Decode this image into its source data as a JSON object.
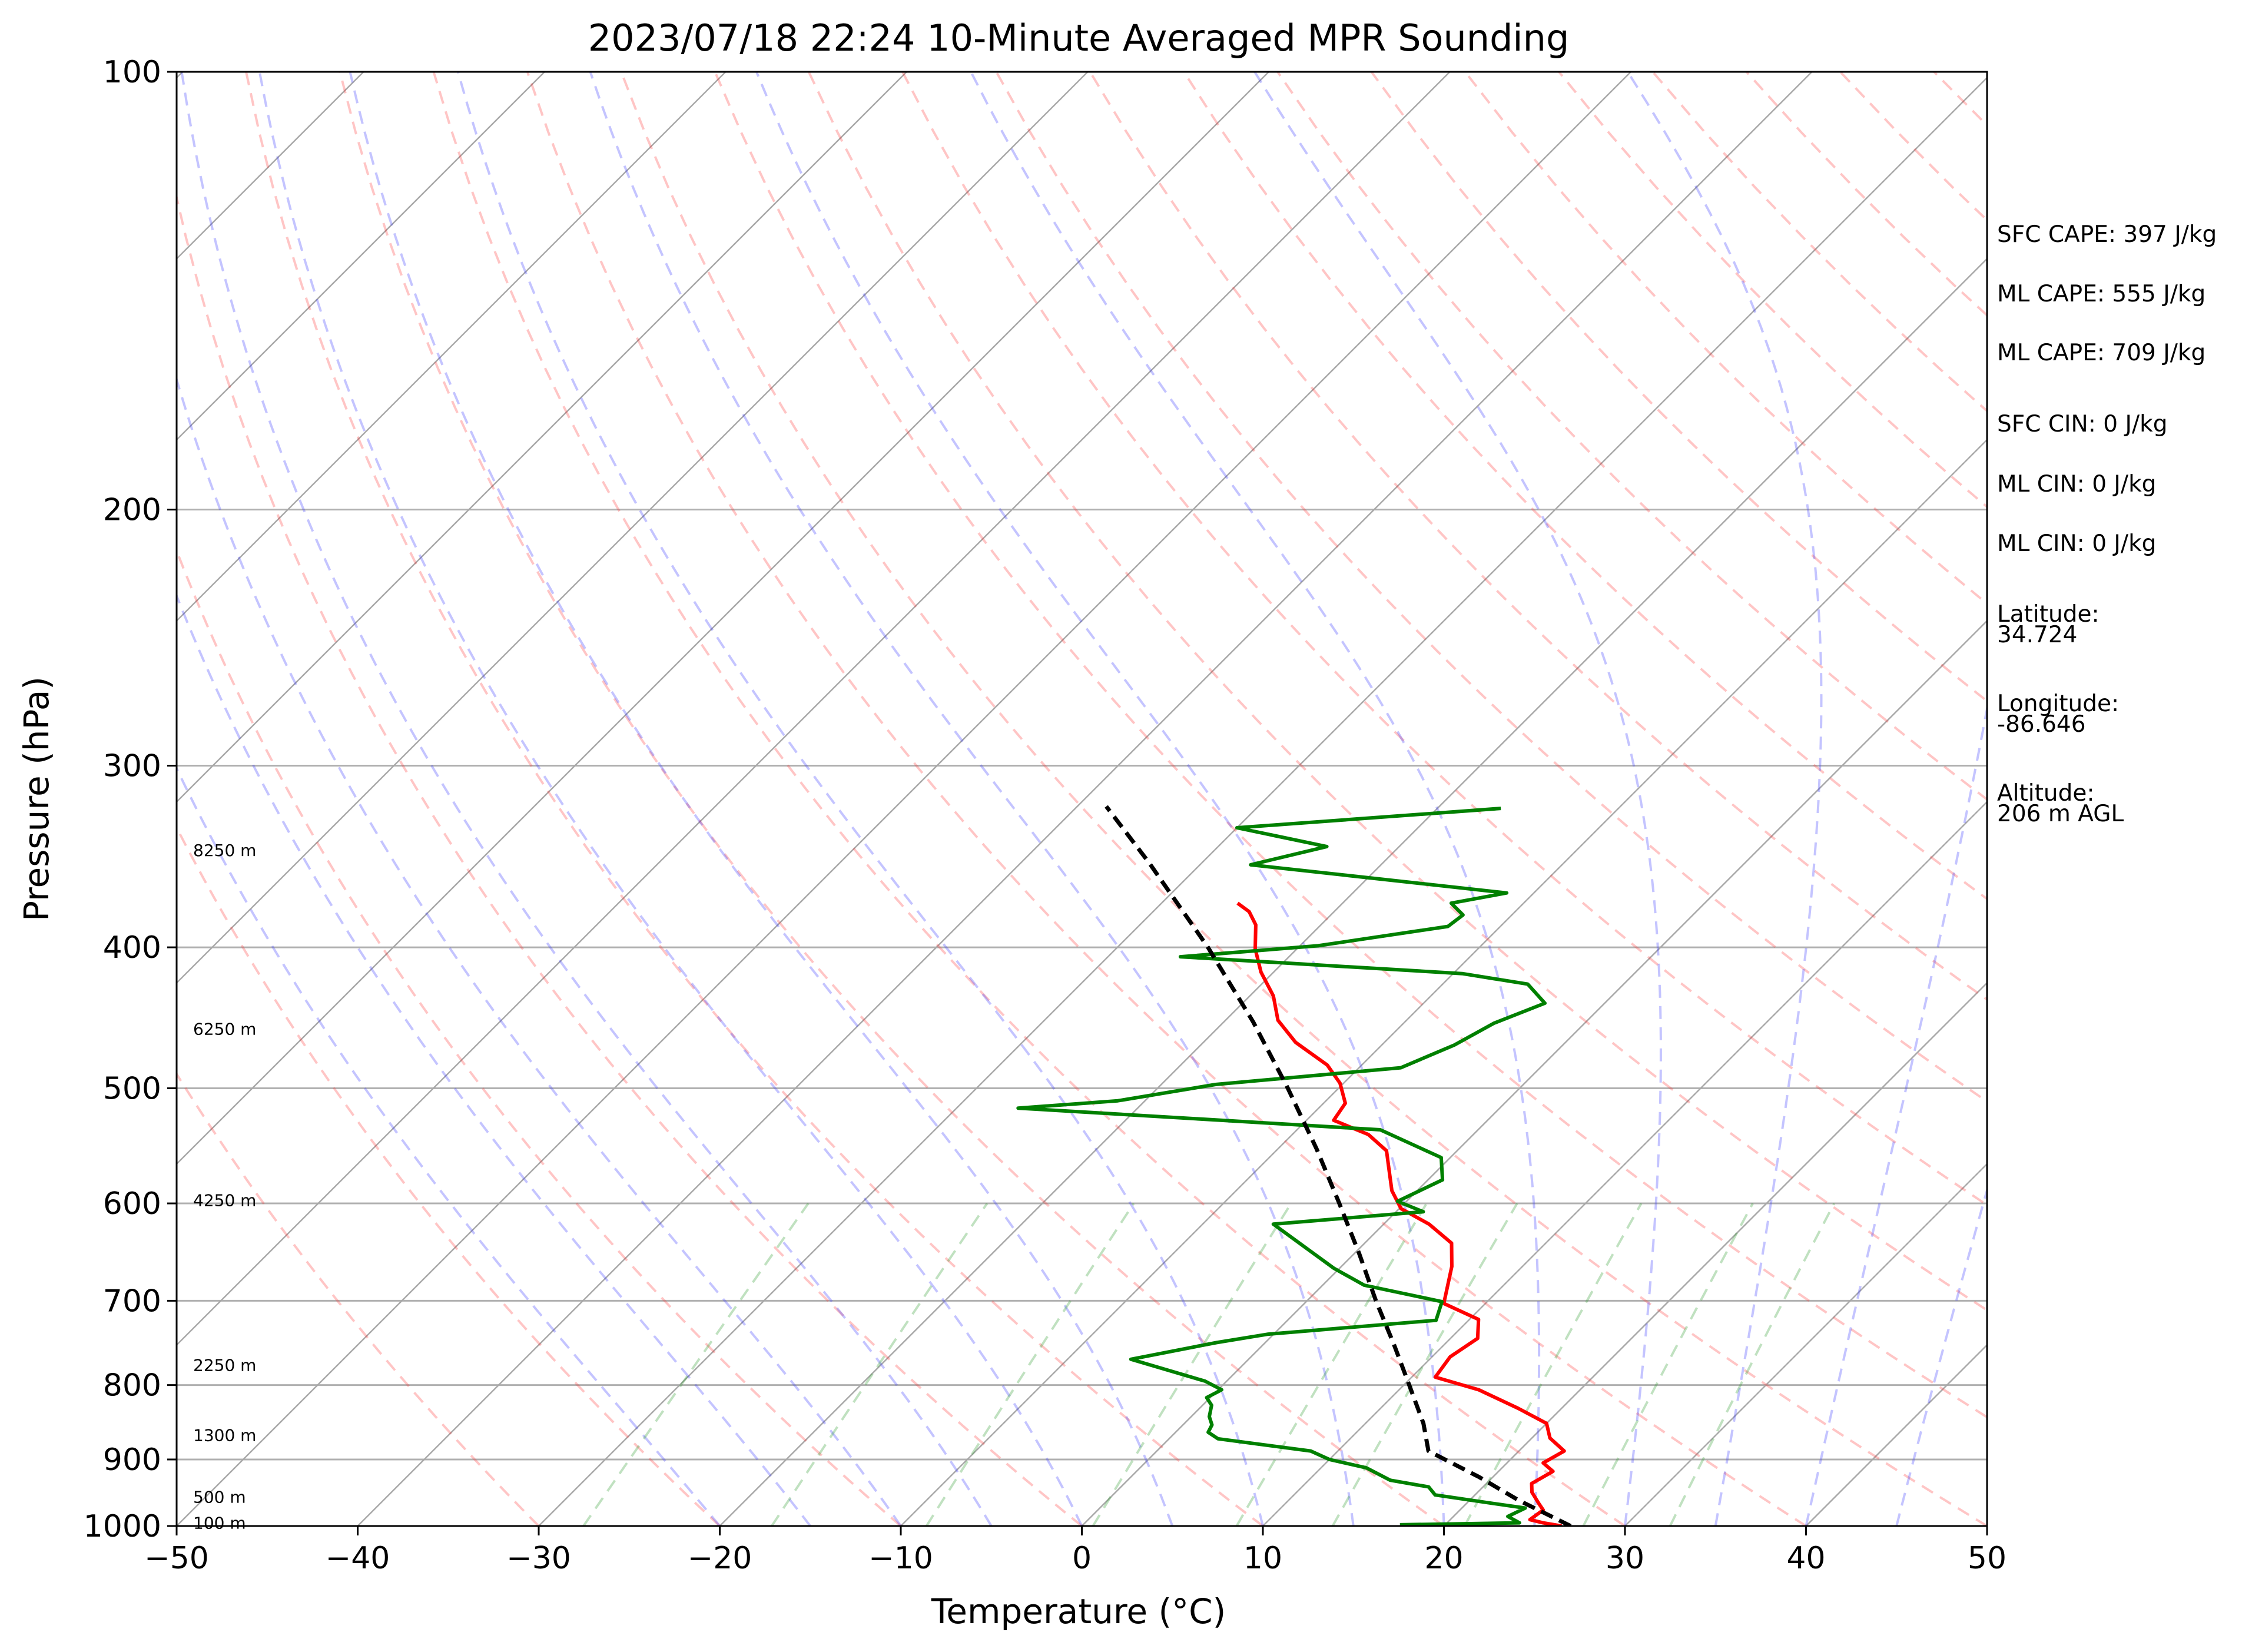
{
  "chart_data": {
    "type": "line",
    "title": "2023/07/18 22:24 10-Minute Averaged MPR Sounding",
    "xlabel": "Temperature (°C)",
    "ylabel": "Pressure (hPa)",
    "xlim": [
      -50,
      50
    ],
    "ylim": [
      1000,
      100
    ],
    "y_scale": "log",
    "skew": "skew-T",
    "grid": true,
    "x_ticks": [
      "−50",
      "−40",
      "−30",
      "−20",
      "−10",
      "0",
      "10",
      "20",
      "30",
      "40",
      "50"
    ],
    "y_ticks": [
      {
        "p": 100,
        "label": "100"
      },
      {
        "p": 200,
        "label": "200"
      },
      {
        "p": 300,
        "label": "300"
      },
      {
        "p": 400,
        "label": "400"
      },
      {
        "p": 500,
        "label": "500"
      },
      {
        "p": 600,
        "label": "600"
      },
      {
        "p": 700,
        "label": "700"
      },
      {
        "p": 800,
        "label": "800"
      },
      {
        "p": 900,
        "label": "900"
      },
      {
        "p": 1000,
        "label": "1000"
      }
    ],
    "height_labels": [
      {
        "p": 995,
        "label": "100 m"
      },
      {
        "p": 955,
        "label": "500 m"
      },
      {
        "p": 866,
        "label": "1300 m"
      },
      {
        "p": 775,
        "label": "2250 m"
      },
      {
        "p": 597,
        "label": "4250 m"
      },
      {
        "p": 455,
        "label": "6250 m"
      },
      {
        "p": 343,
        "label": "8250 m"
      }
    ],
    "series": [
      {
        "color": "#ff0000",
        "style": "solid",
        "points": [
          {
            "p": 1000,
            "t": 26.5
          },
          {
            "p": 995,
            "t": 25.3
          },
          {
            "p": 990,
            "t": 24.4
          },
          {
            "p": 975,
            "t": 24.6
          },
          {
            "p": 965,
            "t": 24.0
          },
          {
            "p": 948,
            "t": 23.0
          },
          {
            "p": 935,
            "t": 22.5
          },
          {
            "p": 917,
            "t": 23.0
          },
          {
            "p": 905,
            "t": 22.0
          },
          {
            "p": 888,
            "t": 22.5
          },
          {
            "p": 870,
            "t": 21.0
          },
          {
            "p": 850,
            "t": 20.0
          },
          {
            "p": 830,
            "t": 17.6
          },
          {
            "p": 806,
            "t": 14.4
          },
          {
            "p": 790,
            "t": 11.3
          },
          {
            "p": 765,
            "t": 11.0
          },
          {
            "p": 743,
            "t": 11.5
          },
          {
            "p": 721,
            "t": 10.5
          },
          {
            "p": 703,
            "t": 7.7
          },
          {
            "p": 663,
            "t": 6.1
          },
          {
            "p": 639,
            "t": 4.8
          },
          {
            "p": 620,
            "t": 2.5
          },
          {
            "p": 605,
            "t": 0.1
          },
          {
            "p": 588,
            "t": -1.4
          },
          {
            "p": 569,
            "t": -2.7
          },
          {
            "p": 552,
            "t": -3.9
          },
          {
            "p": 538,
            "t": -5.8
          },
          {
            "p": 526,
            "t": -8.5
          },
          {
            "p": 512,
            "t": -8.8
          },
          {
            "p": 496,
            "t": -10.2
          },
          {
            "p": 482,
            "t": -11.9
          },
          {
            "p": 465,
            "t": -14.9
          },
          {
            "p": 449,
            "t": -17.1
          },
          {
            "p": 432,
            "t": -18.7
          },
          {
            "p": 416,
            "t": -20.7
          },
          {
            "p": 401,
            "t": -22.3
          },
          {
            "p": 386,
            "t": -23.6
          },
          {
            "p": 378,
            "t": -24.7
          },
          {
            "p": 373,
            "t": -25.8
          }
        ]
      },
      {
        "color": "#008000",
        "style": "solid",
        "points": [
          {
            "p": 998,
            "t": 17.5
          },
          {
            "p": 995,
            "t": 24.0
          },
          {
            "p": 985,
            "t": 23.0
          },
          {
            "p": 972,
            "t": 23.5
          },
          {
            "p": 965,
            "t": 21.5
          },
          {
            "p": 952,
            "t": 17.8
          },
          {
            "p": 940,
            "t": 17.0
          },
          {
            "p": 930,
            "t": 14.5
          },
          {
            "p": 912,
            "t": 12.5
          },
          {
            "p": 900,
            "t": 10.0
          },
          {
            "p": 888,
            "t": 8.5
          },
          {
            "p": 871,
            "t": 2.7
          },
          {
            "p": 862,
            "t": 1.8
          },
          {
            "p": 852,
            "t": 1.6
          },
          {
            "p": 841,
            "t": 1.0
          },
          {
            "p": 826,
            "t": 0.5
          },
          {
            "p": 816,
            "t": -0.2
          },
          {
            "p": 806,
            "t": 0.2
          },
          {
            "p": 795,
            "t": -1.2
          },
          {
            "p": 768,
            "t": -6.5
          },
          {
            "p": 748,
            "t": -2.7
          },
          {
            "p": 738,
            "t": -0.3
          },
          {
            "p": 722,
            "t": 8.2
          },
          {
            "p": 701,
            "t": 7.5
          },
          {
            "p": 683,
            "t": 2.3
          },
          {
            "p": 665,
            "t": -0.3
          },
          {
            "p": 620,
            "t": -6.1
          },
          {
            "p": 608,
            "t": 1.5
          },
          {
            "p": 598,
            "t": -0.5
          },
          {
            "p": 578,
            "t": 0.8
          },
          {
            "p": 558,
            "t": -0.5
          },
          {
            "p": 534,
            "t": -5.4
          },
          {
            "p": 516,
            "t": -26.6
          },
          {
            "p": 510,
            "t": -21.5
          },
          {
            "p": 497,
            "t": -17.0
          },
          {
            "p": 484,
            "t": -7.7
          },
          {
            "p": 467,
            "t": -6.0
          },
          {
            "p": 451,
            "t": -5.0
          },
          {
            "p": 437,
            "t": -3.3
          },
          {
            "p": 424,
            "t": -5.3
          },
          {
            "p": 417,
            "t": -9.5
          },
          {
            "p": 406,
            "t": -26.0
          },
          {
            "p": 399,
            "t": -19.0
          },
          {
            "p": 387,
            "t": -12.9
          },
          {
            "p": 380,
            "t": -12.7
          },
          {
            "p": 373,
            "t": -14.0
          },
          {
            "p": 367,
            "t": -11.5
          },
          {
            "p": 351,
            "t": -27.2
          },
          {
            "p": 341,
            "t": -24.0
          },
          {
            "p": 331,
            "t": -30.0
          },
          {
            "p": 321,
            "t": -16.5
          }
        ]
      },
      {
        "color": "#000000",
        "style": "dashed",
        "points": [
          {
            "p": 1000,
            "t": 27.0
          },
          {
            "p": 960,
            "t": 22.7
          },
          {
            "p": 925,
            "t": 19.2
          },
          {
            "p": 888,
            "t": 15.0
          },
          {
            "p": 850,
            "t": 13.2
          },
          {
            "p": 800,
            "t": 10.3
          },
          {
            "p": 750,
            "t": 7.2
          },
          {
            "p": 700,
            "t": 3.8
          },
          {
            "p": 650,
            "t": 0.3
          },
          {
            "p": 600,
            "t": -3.6
          },
          {
            "p": 550,
            "t": -7.9
          },
          {
            "p": 500,
            "t": -12.8
          },
          {
            "p": 450,
            "t": -18.4
          },
          {
            "p": 400,
            "t": -25.0
          },
          {
            "p": 350,
            "t": -32.9
          },
          {
            "p": 320,
            "t": -38.4
          }
        ]
      }
    ],
    "stats": [
      {
        "lines": [
          "SFC CAPE: 397 J/kg"
        ]
      },
      {
        "lines": [
          "ML CAPE: 555 J/kg"
        ]
      },
      {
        "lines": [
          "ML CAPE: 709 J/kg"
        ]
      },
      {
        "lines": [
          "SFC CIN: 0 J/kg"
        ]
      },
      {
        "lines": [
          "ML CIN: 0 J/kg"
        ]
      },
      {
        "lines": [
          "ML CIN: 0 J/kg"
        ]
      },
      {
        "lines": [
          "Latitude:",
          "34.724"
        ]
      },
      {
        "lines": [
          "Longitude:",
          "-86.646"
        ]
      },
      {
        "lines": [
          "Altitude:",
          "206 m AGL"
        ]
      }
    ]
  }
}
